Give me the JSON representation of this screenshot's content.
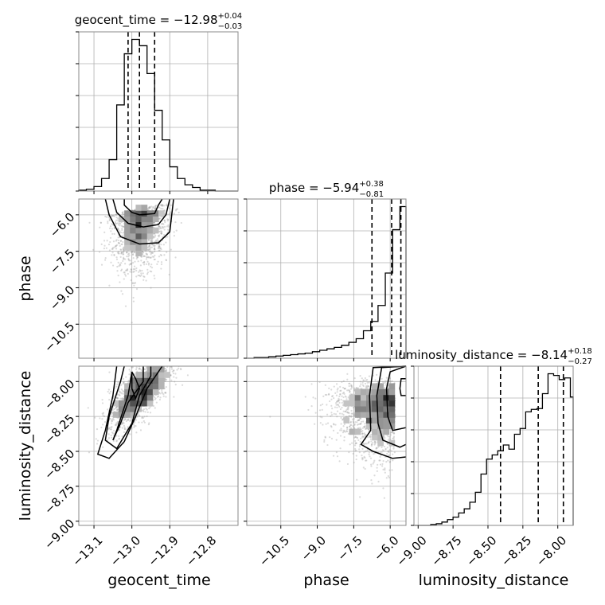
{
  "chart_data": {
    "type": "corner",
    "parameters": [
      {
        "name": "geocent_time",
        "title": {
          "prefix": "geocent_time = ",
          "median": "−12.98",
          "plus": "+0.04",
          "minus": "−0.03"
        },
        "median": -12.98,
        "quantiles": [
          -13.01,
          -12.98,
          -12.94
        ],
        "ticks": [
          -13.1,
          -13.0,
          -12.9,
          -12.8
        ],
        "tick_labels": [
          "−13.1",
          "−13.0",
          "−12.9",
          "−12.8"
        ],
        "range": [
          -13.14,
          -12.72
        ],
        "hist": {
          "bin_edges": [
            -13.14,
            -13.12,
            -13.1,
            -13.08,
            -13.06,
            -13.04,
            -13.02,
            -13.0,
            -12.98,
            -12.96,
            -12.94,
            -12.92,
            -12.9,
            -12.88,
            -12.86,
            -12.84,
            -12.82,
            -12.8,
            -12.78,
            -12.76,
            -12.74,
            -12.72
          ],
          "counts": [
            1,
            2,
            5,
            14,
            35,
            96,
            153,
            169,
            162,
            131,
            90,
            57,
            27,
            14,
            7,
            4,
            1,
            1,
            0,
            0,
            0
          ]
        }
      },
      {
        "name": "phase",
        "title": {
          "prefix": "phase = ",
          "median": "−5.94",
          "plus": "+0.38",
          "minus": "−0.81"
        },
        "median": -5.94,
        "quantiles": [
          -6.75,
          -5.94,
          -5.56
        ],
        "ticks": [
          -10.5,
          -9.0,
          -7.5,
          -6.0
        ],
        "tick_labels": [
          "−10.5",
          "−9.0",
          "−7.5",
          "−6.0"
        ],
        "range": [
          -11.9,
          -5.35
        ],
        "hist": {
          "bin_edges": [
            -11.9,
            -11.6,
            -11.3,
            -11.0,
            -10.7,
            -10.4,
            -10.1,
            -9.8,
            -9.5,
            -9.2,
            -8.9,
            -8.6,
            -8.3,
            -8.0,
            -7.7,
            -7.4,
            -7.1,
            -6.8,
            -6.5,
            -6.2,
            -5.9,
            -5.6,
            -5.35
          ],
          "counts": [
            0,
            1,
            1,
            2,
            3,
            4,
            5,
            6,
            7,
            9,
            11,
            13,
            15,
            18,
            22,
            27,
            38,
            51,
            73,
            118,
            178,
            210
          ]
        }
      },
      {
        "name": "luminosity_distance",
        "title": {
          "prefix": "luminosity_distance = ",
          "median": "−8.14",
          "plus": "+0.18",
          "minus": "−0.27"
        },
        "median": -8.14,
        "quantiles": [
          -8.41,
          -8.14,
          -7.96
        ],
        "ticks": [
          -9.0,
          -8.75,
          -8.5,
          -8.25,
          -8.0
        ],
        "tick_labels": [
          "−9.00",
          "−8.75",
          "−8.50",
          "−8.25",
          "−8.00"
        ],
        "range": [
          -9.03,
          -7.89
        ],
        "hist": {
          "bin_edges": [
            -9.03,
            -8.99,
            -8.95,
            -8.91,
            -8.87,
            -8.83,
            -8.79,
            -8.75,
            -8.71,
            -8.67,
            -8.63,
            -8.59,
            -8.55,
            -8.51,
            -8.47,
            -8.43,
            -8.39,
            -8.35,
            -8.31,
            -8.27,
            -8.23,
            -8.19,
            -8.15,
            -8.11,
            -8.07,
            -8.03,
            -7.99,
            -7.95,
            -7.91,
            -7.89
          ],
          "counts": [
            0,
            0,
            0,
            1,
            2,
            4,
            7,
            10,
            15,
            20,
            28,
            40,
            62,
            80,
            85,
            90,
            97,
            92,
            110,
            117,
            137,
            140,
            141,
            159,
            183,
            181,
            176,
            178,
            155
          ]
        }
      }
    ],
    "pairs": [
      {
        "x": "geocent_time",
        "y": "phase"
      },
      {
        "x": "geocent_time",
        "y": "luminosity_distance"
      },
      {
        "x": "phase",
        "y": "luminosity_distance"
      }
    ],
    "axis_labels": {
      "x": [
        "geocent_time",
        "phase",
        "luminosity_distance"
      ],
      "y": [
        "phase",
        "luminosity_distance"
      ]
    },
    "grid": true
  }
}
